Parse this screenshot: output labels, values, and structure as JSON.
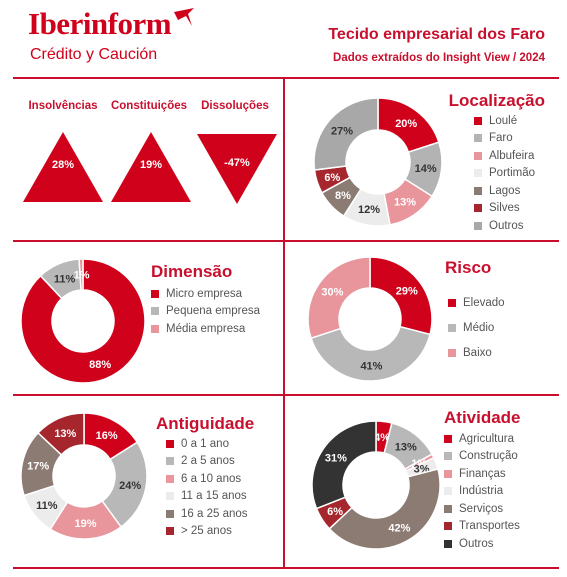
{
  "header": {
    "brand": "Iberinform",
    "brand_sub": "Crédito y Caución",
    "title": "Tecido empresarial dos Faro",
    "subtitle": "Dados extraídos do Insight View / 2024"
  },
  "colors": {
    "accent": "#c8102e"
  },
  "icons": [
    "plane-logo-icon"
  ],
  "indicators": [
    {
      "label": "Insolvências",
      "value": "28%",
      "direction": "up"
    },
    {
      "label": "Constituições",
      "value": "19%",
      "direction": "up"
    },
    {
      "label": "Dissoluções",
      "value": "-47%",
      "direction": "down"
    }
  ],
  "chart_data": [
    {
      "type": "pie",
      "title": "Localização",
      "categories": [
        "Loulé",
        "Faro",
        "Albufeira",
        "Portimão",
        "Lagos",
        "Silves",
        "Outros"
      ],
      "values": [
        20,
        14,
        13,
        12,
        8,
        6,
        27
      ],
      "labels": [
        "20%",
        "14%",
        "13%",
        "12%",
        "8%",
        "6%",
        "27%"
      ],
      "colors": [
        "#d0021b",
        "#b3b3b3",
        "#e8959c",
        "#ececec",
        "#8c7b73",
        "#a5272d",
        "#a8a8a8"
      ],
      "legend": "right"
    },
    {
      "type": "pie",
      "title": "Dimensão",
      "categories": [
        "Micro empresa",
        "Pequena empresa",
        "Média empresa"
      ],
      "values": [
        88,
        11,
        1
      ],
      "labels": [
        "88%",
        "11%",
        "1%"
      ],
      "colors": [
        "#d0021b",
        "#b8b8b8",
        "#e8959c"
      ],
      "legend": "right"
    },
    {
      "type": "pie",
      "title": "Risco",
      "categories": [
        "Elevado",
        "Médio",
        "Baixo"
      ],
      "values": [
        29,
        41,
        30
      ],
      "labels": [
        "29%",
        "41%",
        "30%"
      ],
      "colors": [
        "#d0021b",
        "#b8b8b8",
        "#e8959c"
      ],
      "legend": "right"
    },
    {
      "type": "pie",
      "title": "Antiguidade",
      "categories": [
        "0 a 1 ano",
        "2 a 5 anos",
        "6 a 10 anos",
        "11 a 15 anos",
        "16 a 25 anos",
        "> 25 anos"
      ],
      "values": [
        16,
        24,
        19,
        11,
        17,
        13
      ],
      "labels": [
        "16%",
        "24%",
        "19%",
        "11%",
        "17%",
        "13%"
      ],
      "colors": [
        "#d0021b",
        "#b8b8b8",
        "#e8959c",
        "#ececec",
        "#8c7b73",
        "#a5272d"
      ],
      "legend": "right"
    },
    {
      "type": "pie",
      "title": "Atividade",
      "categories": [
        "Agricultura",
        "Construção",
        "Finanças",
        "Indústria",
        "Serviços",
        "Transportes",
        "Outros"
      ],
      "values": [
        4,
        13,
        1,
        3,
        42,
        6,
        31
      ],
      "labels": [
        "4%",
        "13%",
        "1%",
        "3%",
        "42%",
        "6%",
        "31%"
      ],
      "colors": [
        "#d0021b",
        "#b8b8b8",
        "#e8959c",
        "#ececec",
        "#8c7b73",
        "#a5272d",
        "#333333"
      ],
      "legend": "right"
    }
  ]
}
